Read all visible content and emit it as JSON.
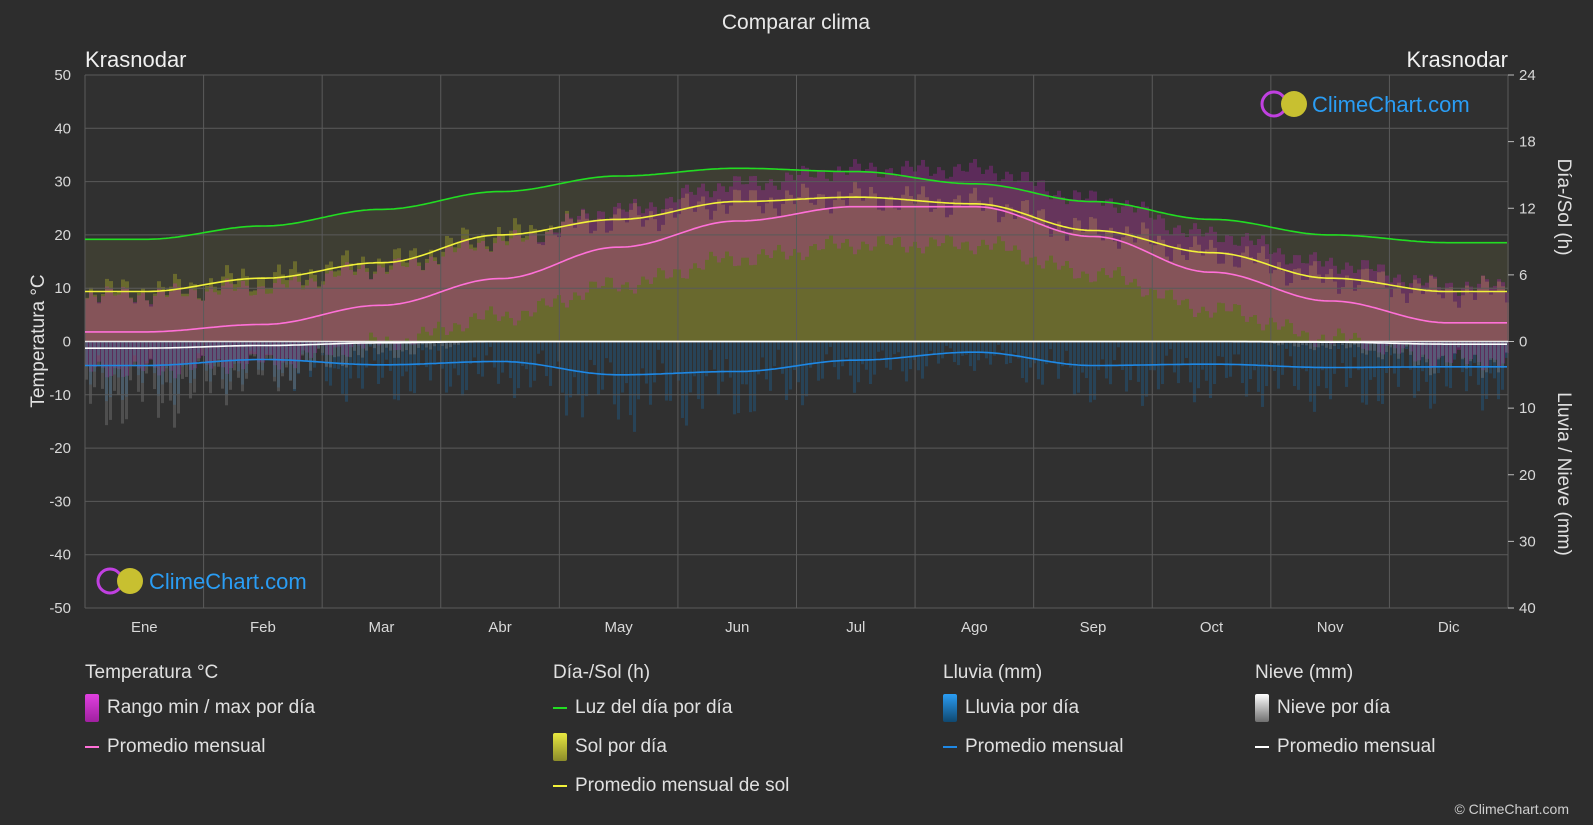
{
  "title": "Comparar clima",
  "location_left": "Krasnodar",
  "location_right": "Krasnodar",
  "axis_left_label": "Temperatura °C",
  "axis_right_top_label": "Día-/Sol (h)",
  "axis_right_bottom_label": "Lluvia / Nieve (mm)",
  "brand": "ClimeChart.com",
  "copyright": "© ClimeChart.com",
  "colors": {
    "background": "#2d2d2d",
    "daylight": "#22dd22",
    "sunshine_avg": "#f2f23a",
    "sunshine_fill": "#8c8c2a",
    "temp_avg": "#ff70d8",
    "temp_range": "#d020c8",
    "rain": "#1e88e5",
    "snow": "#ffffff",
    "brand_text": "#2a9df4"
  },
  "legend": {
    "temperature": {
      "heading": "Temperatura °C",
      "range": "Rango min / max por día",
      "avg": "Promedio mensual"
    },
    "sun": {
      "heading": "Día-/Sol (h)",
      "daylight": "Luz del día por día",
      "sunshine": "Sol por día",
      "sun_avg": "Promedio mensual de sol"
    },
    "rain": {
      "heading": "Lluvia (mm)",
      "rain_day": "Lluvia por día",
      "avg": "Promedio mensual"
    },
    "snow": {
      "heading": "Nieve (mm)",
      "snow_day": "Nieve por día",
      "avg": "Promedio mensual"
    }
  },
  "chart_data": {
    "type": "line",
    "categories": [
      "Ene",
      "Feb",
      "Mar",
      "Abr",
      "May",
      "Jun",
      "Jul",
      "Ago",
      "Sep",
      "Oct",
      "Nov",
      "Dic"
    ],
    "y_left": {
      "label": "Temperatura °C",
      "range": [
        -50,
        50
      ],
      "ticks": [
        50,
        40,
        30,
        20,
        10,
        0,
        -10,
        -20,
        -30,
        -40,
        -50
      ]
    },
    "y_right_top": {
      "label": "Día-/Sol (h)",
      "range": [
        0,
        24
      ],
      "ticks": [
        24,
        18,
        12,
        6,
        0
      ]
    },
    "y_right_bottom": {
      "label": "Lluvia / Nieve (mm)",
      "range": [
        0,
        40
      ],
      "ticks": [
        0,
        10,
        20,
        30,
        40
      ]
    },
    "grid": true,
    "series": [
      {
        "name": "Luz del día por día",
        "axis": "sun_hours",
        "values": [
          9.2,
          10.4,
          11.9,
          13.5,
          14.9,
          15.6,
          15.3,
          14.2,
          12.6,
          11.0,
          9.6,
          8.9
        ]
      },
      {
        "name": "Promedio mensual de sol",
        "axis": "sun_hours",
        "values": [
          4.5,
          5.7,
          7.1,
          9.6,
          11.0,
          12.6,
          13.0,
          12.4,
          10.0,
          8.0,
          5.7,
          4.5
        ]
      },
      {
        "name": "Promedio mensual",
        "kind": "temperature",
        "axis": "temperature_c",
        "values": [
          1.8,
          3.2,
          6.8,
          11.8,
          17.7,
          22.6,
          25.3,
          25.3,
          19.7,
          13.0,
          7.6,
          3.5
        ]
      },
      {
        "name": "Promedio mensual",
        "kind": "rain",
        "axis": "precip_mm",
        "values": [
          3.6,
          2.7,
          3.5,
          3.0,
          5.0,
          4.5,
          2.8,
          1.6,
          3.6,
          3.4,
          3.9,
          3.8
        ]
      },
      {
        "name": "Promedio mensual",
        "kind": "snow",
        "axis": "precip_mm",
        "values": [
          1.0,
          0.6,
          0.2,
          0.0,
          0.0,
          0.0,
          0.0,
          0.0,
          0.0,
          0.0,
          0.1,
          0.4
        ]
      }
    ]
  }
}
